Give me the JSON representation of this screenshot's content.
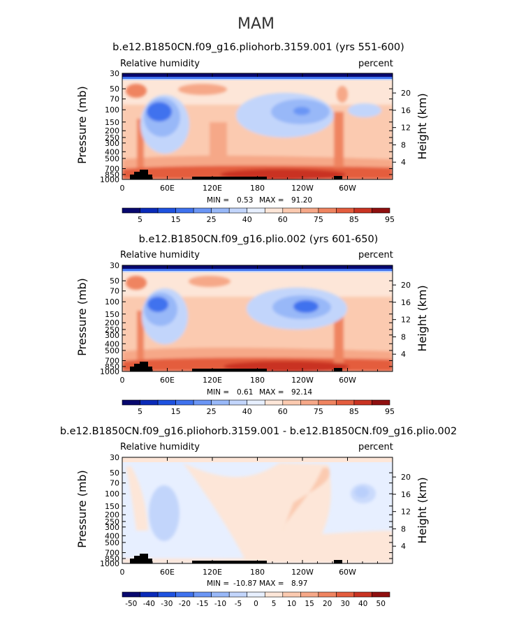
{
  "title": "MAM",
  "colors": {
    "ratio_levels": [
      "#08086e",
      "#0a2ab8",
      "#1e52e0",
      "#3f72ee",
      "#6b96f5",
      "#98b8f8",
      "#c2d5fb",
      "#e7efff",
      "#fde6d8",
      "#fbcab0",
      "#f6a888",
      "#ef8460",
      "#e45d3e",
      "#c93322",
      "#8f0f0f"
    ],
    "diff_levels": [
      "#08086e",
      "#0a2ab8",
      "#1e52e0",
      "#3f72ee",
      "#6b96f5",
      "#98b8f8",
      "#c2d5fb",
      "#e7efff",
      "#fde6d8",
      "#fbcab0",
      "#f6a888",
      "#ef8460",
      "#e45d3e",
      "#c93322",
      "#8f0f0f"
    ]
  },
  "chart_data": [
    {
      "type": "heatmap",
      "title": "b.e12.B1850CN.f09_g16.pliohorb.3159.001 (yrs 551-600)",
      "variable": "Relative humidity",
      "units": "percent",
      "ylabel": "Pressure (mb)",
      "ylabel_right": "Height (km)",
      "x_ticks": [
        "0",
        "60E",
        "120E",
        "180",
        "120W",
        "60W"
      ],
      "x_tick_lons": [
        0,
        60,
        120,
        180,
        240,
        300
      ],
      "y_ticks": [
        "30",
        "50",
        "70",
        "100",
        "150",
        "200",
        "250",
        "300",
        "400",
        "500",
        "700",
        "850",
        "1000"
      ],
      "y_tick_values": [
        30,
        50,
        70,
        100,
        150,
        200,
        250,
        300,
        400,
        500,
        700,
        850,
        1000
      ],
      "height_ticks": [
        "20",
        "16",
        "12",
        "8",
        "4"
      ],
      "height_values": [
        20,
        16,
        12,
        8,
        4
      ],
      "min_label": "MIN =",
      "min_value": "0.53",
      "max_label": "MAX =",
      "max_value": "91.20",
      "colorbar_labels": [
        "5",
        "15",
        "25",
        "40",
        "60",
        "75",
        "85",
        "95"
      ]
    },
    {
      "type": "heatmap",
      "title": "b.e12.B1850CN.f09_g16.plio.002 (yrs 601-650)",
      "variable": "Relative humidity",
      "units": "percent",
      "ylabel": "Pressure (mb)",
      "ylabel_right": "Height (km)",
      "x_ticks": [
        "0",
        "60E",
        "120E",
        "180",
        "120W",
        "60W"
      ],
      "x_tick_lons": [
        0,
        60,
        120,
        180,
        240,
        300
      ],
      "y_ticks": [
        "30",
        "50",
        "70",
        "100",
        "150",
        "200",
        "250",
        "300",
        "400",
        "500",
        "700",
        "850",
        "1000"
      ],
      "y_tick_values": [
        30,
        50,
        70,
        100,
        150,
        200,
        250,
        300,
        400,
        500,
        700,
        850,
        1000
      ],
      "height_ticks": [
        "20",
        "16",
        "12",
        "8",
        "4"
      ],
      "height_values": [
        20,
        16,
        12,
        8,
        4
      ],
      "min_label": "MIN =",
      "min_value": "0.61",
      "max_label": "MAX =",
      "max_value": "92.14",
      "colorbar_labels": [
        "5",
        "15",
        "25",
        "40",
        "60",
        "75",
        "85",
        "95"
      ]
    },
    {
      "type": "heatmap",
      "title": "b.e12.B1850CN.f09_g16.pliohorb.3159.001 - b.e12.B1850CN.f09_g16.plio.002",
      "variable": "Relative humidity",
      "units": "percent",
      "ylabel": "Pressure (mb)",
      "ylabel_right": "Height (km)",
      "x_ticks": [
        "0",
        "60E",
        "120E",
        "180",
        "120W",
        "60W"
      ],
      "x_tick_lons": [
        0,
        60,
        120,
        180,
        240,
        300
      ],
      "y_ticks": [
        "30",
        "50",
        "70",
        "100",
        "150",
        "200",
        "250",
        "300",
        "400",
        "500",
        "700",
        "850",
        "1000"
      ],
      "y_tick_values": [
        30,
        50,
        70,
        100,
        150,
        200,
        250,
        300,
        400,
        500,
        700,
        850,
        1000
      ],
      "height_ticks": [
        "20",
        "16",
        "12",
        "8",
        "4"
      ],
      "height_values": [
        20,
        16,
        12,
        8,
        4
      ],
      "min_label": "MIN =",
      "min_value": "-10.87",
      "max_label": "MAX =",
      "max_value": "8.97",
      "colorbar_labels": [
        "-50",
        "-40",
        "-30",
        "-20",
        "-15",
        "-10",
        "-5",
        "0",
        "5",
        "10",
        "15",
        "20",
        "30",
        "40",
        "50"
      ]
    }
  ]
}
